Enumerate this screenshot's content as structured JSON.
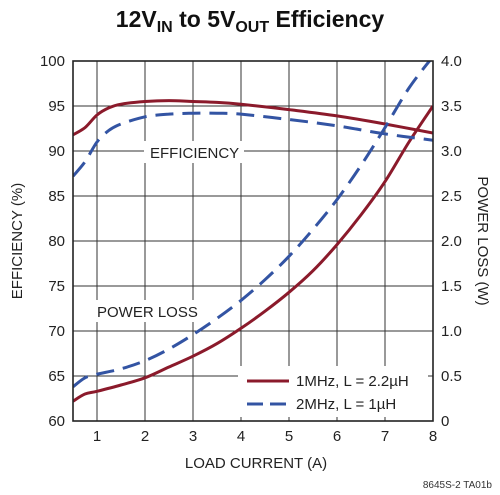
{
  "chart_data": {
    "type": "line",
    "title": {
      "prefix": "12V",
      "sub_in": "IN",
      "middle": " to 5V",
      "sub_out": "OUT",
      "suffix": " Efficiency"
    },
    "xlabel": "LOAD CURRENT (A)",
    "ylabel_left": "EFFICIENCY (%)",
    "ylabel_right": "POWER LOSS (W)",
    "xlim": [
      0.5,
      8
    ],
    "ylim_left": [
      60,
      100
    ],
    "ylim_right": [
      0,
      4.0
    ],
    "x_ticks": [
      "1",
      "2",
      "3",
      "4",
      "5",
      "6",
      "7",
      "8"
    ],
    "x_tick_values": [
      1,
      2,
      3,
      4,
      5,
      6,
      7,
      8
    ],
    "y_left_ticks": [
      "60",
      "65",
      "70",
      "75",
      "80",
      "85",
      "90",
      "95",
      "100"
    ],
    "y_left_tick_values": [
      60,
      65,
      70,
      75,
      80,
      85,
      90,
      95,
      100
    ],
    "y_right_ticks": [
      "0",
      "0.5",
      "1.0",
      "1.5",
      "2.0",
      "2.5",
      "3.0",
      "3.5",
      "4.0"
    ],
    "y_right_tick_values": [
      0,
      0.5,
      1.0,
      1.5,
      2.0,
      2.5,
      3.0,
      3.5,
      4.0
    ],
    "grid": true,
    "legend_position": "bottom-right",
    "annotations": {
      "efficiency": "EFFICIENCY",
      "power_loss": "POWER LOSS"
    },
    "figure_code": "8645S-2 TA01b",
    "series": [
      {
        "name": "1MHz, L = 2.2µH",
        "color": "#8b1a2b",
        "dash": "solid",
        "efficiency": {
          "x": [
            0.5,
            0.75,
            1.0,
            1.25,
            1.5,
            2.0,
            2.5,
            3.0,
            3.5,
            4.0,
            5.0,
            6.0,
            7.0,
            8.0
          ],
          "y": [
            91.8,
            92.6,
            94.0,
            94.8,
            95.2,
            95.5,
            95.6,
            95.5,
            95.4,
            95.2,
            94.6,
            93.9,
            93.0,
            92.0
          ]
        },
        "power_loss": {
          "x": [
            0.5,
            0.75,
            1.0,
            1.5,
            2.0,
            2.5,
            3.0,
            3.5,
            4.0,
            4.5,
            5.0,
            5.5,
            6.0,
            6.5,
            7.0,
            7.5,
            8.0
          ],
          "y": [
            0.22,
            0.3,
            0.33,
            0.4,
            0.48,
            0.6,
            0.72,
            0.86,
            1.03,
            1.22,
            1.43,
            1.67,
            1.96,
            2.29,
            2.66,
            3.1,
            3.5
          ]
        }
      },
      {
        "name": "2MHz, L = 1µH",
        "color": "#3354a3",
        "dash": "dashed",
        "efficiency": {
          "x": [
            0.5,
            0.75,
            1.0,
            1.25,
            1.5,
            2.0,
            2.5,
            3.0,
            3.5,
            4.0,
            5.0,
            6.0,
            7.0,
            8.0
          ],
          "y": [
            87.2,
            88.8,
            91.0,
            92.3,
            93.0,
            93.8,
            94.1,
            94.2,
            94.2,
            94.1,
            93.5,
            92.8,
            91.9,
            91.2
          ]
        },
        "power_loss": {
          "x": [
            0.5,
            0.75,
            1.0,
            1.5,
            2.0,
            2.5,
            3.0,
            3.5,
            4.0,
            4.5,
            5.0,
            5.5,
            6.0,
            6.5,
            7.0,
            7.5,
            8.0
          ],
          "y": [
            0.38,
            0.48,
            0.52,
            0.58,
            0.67,
            0.8,
            0.96,
            1.14,
            1.34,
            1.57,
            1.83,
            2.13,
            2.46,
            2.84,
            3.26,
            3.7,
            4.05
          ]
        }
      }
    ]
  }
}
